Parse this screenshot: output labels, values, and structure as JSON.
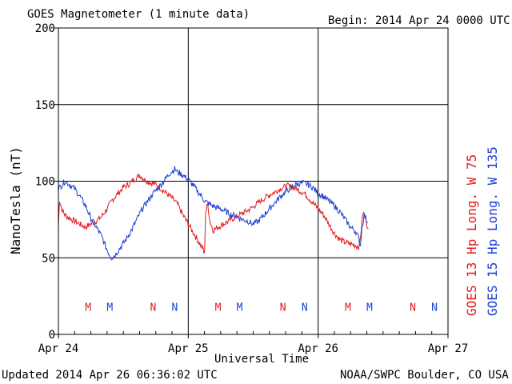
{
  "header": {
    "title": "GOES Magnetometer (1 minute data)",
    "begin": "Begin:  2014 Apr 24 0000 UTC"
  },
  "footer": {
    "updated": "Updated 2014 Apr 26 06:36:02 UTC",
    "source": "NOAA/SWPC Boulder, CO USA"
  },
  "colors": {
    "goes13": "#e41a1c",
    "goes15": "#1a3fd6",
    "grid": "#000000"
  },
  "chart_data": {
    "type": "line",
    "title": "GOES Magnetometer (1 minute data)",
    "xlabel": "Universal Time",
    "ylabel": "NanoTesla (nT)",
    "xlim": [
      0,
      72
    ],
    "ylim": [
      0,
      200
    ],
    "x_unit": "hours since 2014 Apr 24 0000 UTC",
    "x_ticks": [
      {
        "x": 0,
        "label": "Apr 24"
      },
      {
        "x": 24,
        "label": "Apr 25"
      },
      {
        "x": 48,
        "label": "Apr 26"
      },
      {
        "x": 72,
        "label": "Apr 27"
      }
    ],
    "y_ticks": [
      0,
      50,
      100,
      150,
      200
    ],
    "grid": true,
    "series": [
      {
        "name": "GOES 13 Hp  Long. W 75",
        "color": "#e41a1c",
        "points": [
          [
            0,
            70
          ],
          [
            0.2,
            88
          ],
          [
            0.6,
            82
          ],
          [
            1.2,
            78
          ],
          [
            2,
            76
          ],
          [
            3,
            74
          ],
          [
            4,
            72
          ],
          [
            5,
            70
          ],
          [
            6,
            72
          ],
          [
            7,
            74
          ],
          [
            8,
            77
          ],
          [
            9,
            82
          ],
          [
            10,
            88
          ],
          [
            11,
            92
          ],
          [
            12,
            96
          ],
          [
            13,
            98
          ],
          [
            14,
            101
          ],
          [
            15,
            104
          ],
          [
            16,
            101
          ],
          [
            17,
            99
          ],
          [
            18,
            98
          ],
          [
            19,
            95
          ],
          [
            20,
            92
          ],
          [
            21,
            89
          ],
          [
            22,
            85
          ],
          [
            23,
            78
          ],
          [
            24,
            72
          ],
          [
            25,
            66
          ],
          [
            26,
            60
          ],
          [
            26.8,
            55
          ],
          [
            27,
            52
          ],
          [
            27.2,
            80
          ],
          [
            27.6,
            85
          ],
          [
            28,
            74
          ],
          [
            28.6,
            68
          ],
          [
            29.5,
            70
          ],
          [
            31,
            73
          ],
          [
            32.5,
            76
          ],
          [
            34,
            79
          ],
          [
            35.5,
            82
          ],
          [
            37,
            86
          ],
          [
            38.5,
            90
          ],
          [
            40,
            93
          ],
          [
            41.5,
            96
          ],
          [
            42.5,
            97
          ],
          [
            44,
            95
          ],
          [
            45.5,
            92
          ],
          [
            47,
            86
          ],
          [
            48,
            82
          ],
          [
            49,
            78
          ],
          [
            50,
            72
          ],
          [
            51,
            66
          ],
          [
            52,
            62
          ],
          [
            53,
            60
          ],
          [
            54,
            59
          ],
          [
            55,
            58
          ],
          [
            55.6,
            57
          ],
          [
            56,
            70
          ],
          [
            56.3,
            80
          ],
          [
            56.7,
            76
          ],
          [
            57,
            72
          ],
          [
            57.3,
            69
          ]
        ]
      },
      {
        "name": "GOES 15 Hp  Long. W 135",
        "color": "#1a3fd6",
        "points": [
          [
            0,
            95
          ],
          [
            0.5,
            97
          ],
          [
            1.2,
            100
          ],
          [
            2,
            98
          ],
          [
            3,
            95
          ],
          [
            4,
            90
          ],
          [
            5,
            84
          ],
          [
            6,
            76
          ],
          [
            7,
            70
          ],
          [
            8,
            64
          ],
          [
            9,
            55
          ],
          [
            9.8,
            50
          ],
          [
            10.5,
            52
          ],
          [
            11.5,
            57
          ],
          [
            12.5,
            62
          ],
          [
            13.5,
            68
          ],
          [
            14.5,
            75
          ],
          [
            15.5,
            82
          ],
          [
            16.5,
            87
          ],
          [
            17.5,
            92
          ],
          [
            18.5,
            96
          ],
          [
            19.5,
            100
          ],
          [
            20.5,
            105
          ],
          [
            21.5,
            108
          ],
          [
            22,
            106
          ],
          [
            23,
            104
          ],
          [
            24,
            101
          ],
          [
            25,
            97
          ],
          [
            26,
            92
          ],
          [
            26.6,
            90
          ],
          [
            27,
            87
          ],
          [
            28,
            85
          ],
          [
            29,
            83
          ],
          [
            30,
            82
          ],
          [
            31,
            80
          ],
          [
            32,
            78
          ],
          [
            33,
            77
          ],
          [
            34,
            75
          ],
          [
            35,
            74
          ],
          [
            36,
            72
          ],
          [
            37,
            74
          ],
          [
            38,
            78
          ],
          [
            39,
            82
          ],
          [
            40,
            86
          ],
          [
            41,
            90
          ],
          [
            42,
            93
          ],
          [
            43,
            96
          ],
          [
            44,
            98
          ],
          [
            45,
            99
          ],
          [
            46,
            98
          ],
          [
            47,
            96
          ],
          [
            48,
            92
          ],
          [
            49,
            90
          ],
          [
            50,
            87
          ],
          [
            51,
            84
          ],
          [
            52,
            80
          ],
          [
            53,
            75
          ],
          [
            54,
            70
          ],
          [
            55,
            67
          ],
          [
            55.4,
            64
          ],
          [
            55.8,
            58
          ],
          [
            56.1,
            70
          ],
          [
            56.5,
            78
          ],
          [
            56.9,
            75
          ],
          [
            57.2,
            73
          ]
        ]
      }
    ],
    "annotations": {
      "y": 18,
      "markers": [
        {
          "x": 5.5,
          "label": "M",
          "color": "#e41a1c"
        },
        {
          "x": 9.5,
          "label": "M",
          "color": "#1a3fd6"
        },
        {
          "x": 17.5,
          "label": "N",
          "color": "#e41a1c"
        },
        {
          "x": 21.5,
          "label": "N",
          "color": "#1a3fd6"
        },
        {
          "x": 29.5,
          "label": "M",
          "color": "#e41a1c"
        },
        {
          "x": 33.5,
          "label": "M",
          "color": "#1a3fd6"
        },
        {
          "x": 41.5,
          "label": "N",
          "color": "#e41a1c"
        },
        {
          "x": 45.5,
          "label": "N",
          "color": "#1a3fd6"
        },
        {
          "x": 53.5,
          "label": "M",
          "color": "#e41a1c"
        },
        {
          "x": 57.5,
          "label": "M",
          "color": "#1a3fd6"
        },
        {
          "x": 65.5,
          "label": "N",
          "color": "#e41a1c"
        },
        {
          "x": 69.5,
          "label": "N",
          "color": "#1a3fd6"
        }
      ]
    }
  }
}
